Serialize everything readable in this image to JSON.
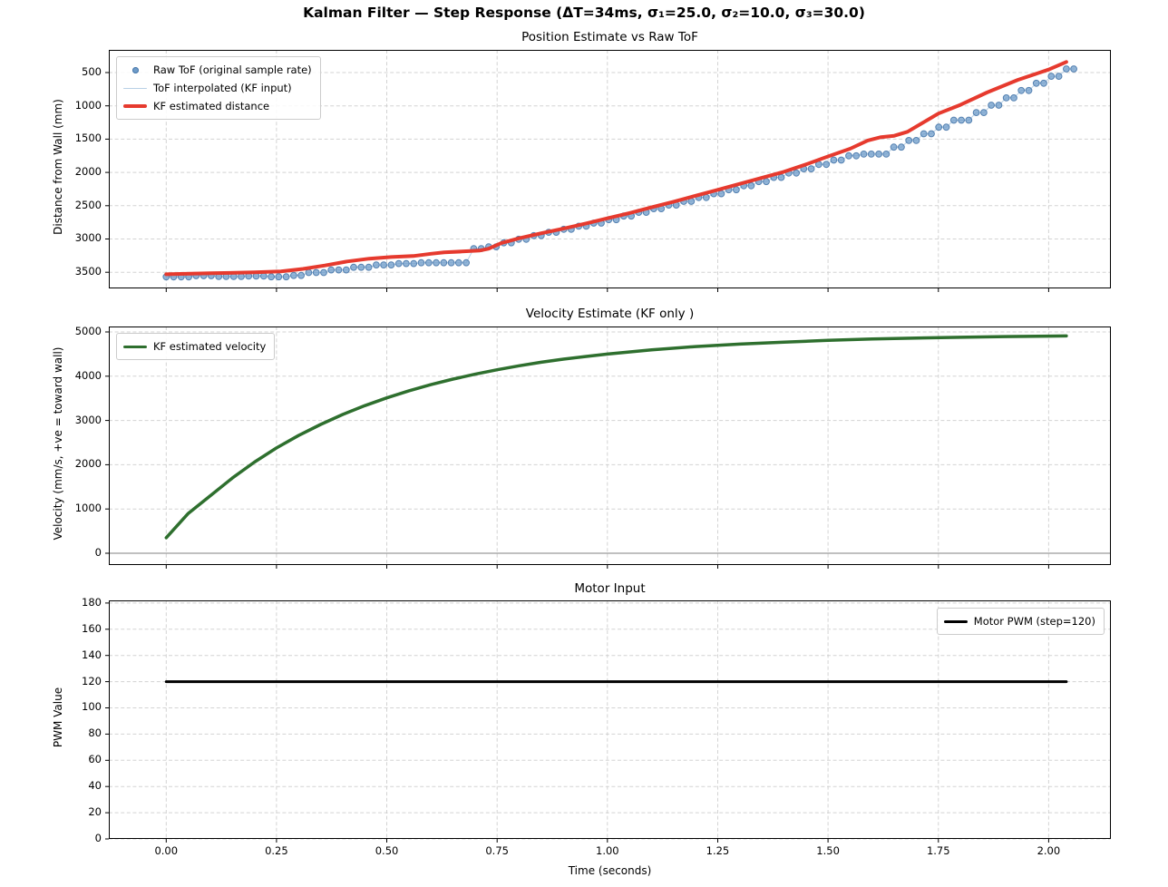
{
  "figure": {
    "suptitle": "Kalman Filter — Step Response  (ΔT=34ms, σ₁=25.0, σ₂=10.0, σ₃=30.0)",
    "xlabel": "Time (seconds)",
    "xtick_values": [
      0,
      0.25,
      0.5,
      0.75,
      1.0,
      1.25,
      1.5,
      1.75,
      2.0
    ],
    "xtick_labels": [
      "0.00",
      "0.25",
      "0.50",
      "0.75",
      "1.00",
      "1.25",
      "1.50",
      "1.75",
      "2.00"
    ],
    "xlim": [
      -0.13,
      2.141
    ],
    "background": "#ffffff",
    "grid_color": "#cccccc",
    "spine_color": "#000000",
    "text_color": "#000000"
  },
  "chart_data": [
    {
      "type": "scatter+line",
      "title": "Position Estimate vs Raw ToF",
      "ylabel": "Distance from Wall (mm)",
      "ytick_values": [
        500,
        1000,
        1500,
        2000,
        2500,
        3000,
        3500
      ],
      "ytick_labels": [
        "500",
        "1000",
        "1500",
        "2000",
        "2500",
        "3000",
        "3500"
      ],
      "ylim_top_bottom": [
        159,
        3743
      ],
      "y_inverted": true,
      "grid": true,
      "legend": {
        "loc": "upper-left",
        "entries": [
          {
            "label": "Raw ToF (original sample rate)",
            "swatch": "dot",
            "color": "#6f9cc9"
          },
          {
            "label": "ToF interpolated (KF input)",
            "swatch": "line",
            "color": "#b8d0e6",
            "lw": 1.5
          },
          {
            "label": "KF estimated distance",
            "swatch": "line",
            "color": "#e63a2e",
            "lw": 4
          }
        ]
      },
      "raw_dt": 0.017,
      "raw_steps": [
        [
          0.0,
          4,
          3570
        ],
        [
          0.068,
          3,
          3552
        ],
        [
          0.119,
          4,
          3565
        ],
        [
          0.187,
          3,
          3558
        ],
        [
          0.238,
          3,
          3568
        ],
        [
          0.289,
          2,
          3548
        ],
        [
          0.323,
          3,
          3505
        ],
        [
          0.374,
          3,
          3465
        ],
        [
          0.425,
          3,
          3425
        ],
        [
          0.476,
          3,
          3390
        ],
        [
          0.527,
          3,
          3370
        ],
        [
          0.578,
          7,
          3358
        ],
        [
          0.697,
          2,
          3145
        ],
        [
          0.731,
          2,
          3118
        ],
        [
          0.765,
          2,
          3058
        ],
        [
          0.799,
          2,
          3005
        ],
        [
          0.833,
          2,
          2950
        ],
        [
          0.867,
          2,
          2900
        ],
        [
          0.901,
          2,
          2855
        ],
        [
          0.935,
          2,
          2808
        ],
        [
          0.969,
          2,
          2762
        ],
        [
          1.003,
          2,
          2710
        ],
        [
          1.037,
          2,
          2655
        ],
        [
          1.071,
          2,
          2600
        ],
        [
          1.105,
          2,
          2545
        ],
        [
          1.139,
          2,
          2490
        ],
        [
          1.173,
          2,
          2435
        ],
        [
          1.207,
          2,
          2378
        ],
        [
          1.241,
          2,
          2320
        ],
        [
          1.275,
          2,
          2260
        ],
        [
          1.309,
          2,
          2200
        ],
        [
          1.343,
          2,
          2138
        ],
        [
          1.377,
          2,
          2075
        ],
        [
          1.411,
          2,
          2010
        ],
        [
          1.445,
          2,
          1945
        ],
        [
          1.479,
          2,
          1880
        ],
        [
          1.513,
          2,
          1815
        ],
        [
          1.547,
          2,
          1750
        ],
        [
          1.581,
          4,
          1725
        ],
        [
          1.649,
          2,
          1620
        ],
        [
          1.683,
          2,
          1520
        ],
        [
          1.717,
          2,
          1420
        ],
        [
          1.751,
          2,
          1320
        ],
        [
          1.785,
          3,
          1215
        ],
        [
          1.836,
          2,
          1100
        ],
        [
          1.87,
          2,
          990
        ],
        [
          1.904,
          2,
          880
        ],
        [
          1.938,
          2,
          770
        ],
        [
          1.972,
          2,
          660
        ],
        [
          2.006,
          2,
          555
        ],
        [
          2.04,
          2,
          445
        ]
      ],
      "series": [
        {
          "name": "ToF interpolated (KF input)",
          "type": "line-from-steps",
          "color": "#b8d0e6",
          "width": 1
        },
        {
          "name": "Raw ToF (original sample rate)",
          "type": "scatter-steps",
          "fill": "#6f9cc9",
          "edge": "#4878ab",
          "radius": 3.4,
          "opacity": 0.75
        },
        {
          "name": "KF estimated distance",
          "type": "line",
          "color": "#e63a2e",
          "width": 4,
          "points": [
            [
              0.0,
              3530
            ],
            [
              0.1,
              3516
            ],
            [
              0.2,
              3502
            ],
            [
              0.26,
              3487
            ],
            [
              0.31,
              3450
            ],
            [
              0.36,
              3398
            ],
            [
              0.41,
              3338
            ],
            [
              0.46,
              3296
            ],
            [
              0.51,
              3272
            ],
            [
              0.56,
              3256
            ],
            [
              0.6,
              3222
            ],
            [
              0.63,
              3200
            ],
            [
              0.67,
              3188
            ],
            [
              0.71,
              3175
            ],
            [
              0.73,
              3148
            ],
            [
              0.76,
              3060
            ],
            [
              0.8,
              2990
            ],
            [
              0.85,
              2915
            ],
            [
              0.9,
              2845
            ],
            [
              0.95,
              2770
            ],
            [
              1.0,
              2690
            ],
            [
              1.05,
              2610
            ],
            [
              1.1,
              2525
            ],
            [
              1.15,
              2440
            ],
            [
              1.2,
              2350
            ],
            [
              1.25,
              2262
            ],
            [
              1.3,
              2172
            ],
            [
              1.35,
              2082
            ],
            [
              1.4,
              1990
            ],
            [
              1.45,
              1880
            ],
            [
              1.5,
              1760
            ],
            [
              1.55,
              1645
            ],
            [
              1.59,
              1520
            ],
            [
              1.62,
              1470
            ],
            [
              1.65,
              1450
            ],
            [
              1.68,
              1390
            ],
            [
              1.75,
              1115
            ],
            [
              1.8,
              985
            ],
            [
              1.86,
              800
            ],
            [
              1.93,
              610
            ],
            [
              2.0,
              455
            ],
            [
              2.04,
              340
            ]
          ]
        }
      ]
    },
    {
      "type": "line",
      "title": "Velocity Estimate (KF only )",
      "ylabel": "Velocity (mm/s,  +ve = toward wall)",
      "ytick_values": [
        0,
        1000,
        2000,
        3000,
        4000,
        5000
      ],
      "ytick_labels": [
        "0",
        "1000",
        "2000",
        "3000",
        "4000",
        "5000"
      ],
      "ylim_top_bottom": [
        5123,
        -266
      ],
      "y_inverted": false,
      "grid": true,
      "hline": {
        "y": 0,
        "color": "#808080",
        "width": 1
      },
      "legend": {
        "loc": "upper-left",
        "entries": [
          {
            "label": "KF estimated velocity",
            "swatch": "line",
            "color": "#2e6f2e",
            "lw": 3.5
          }
        ]
      },
      "series": [
        {
          "name": "KF estimated velocity",
          "type": "line",
          "color": "#2e6f2e",
          "width": 3.5,
          "points": [
            [
              0.0,
              350
            ],
            [
              0.05,
              900
            ],
            [
              0.1,
              1300
            ],
            [
              0.15,
              1700
            ],
            [
              0.2,
              2060
            ],
            [
              0.25,
              2380
            ],
            [
              0.3,
              2660
            ],
            [
              0.35,
              2910
            ],
            [
              0.4,
              3135
            ],
            [
              0.45,
              3335
            ],
            [
              0.5,
              3510
            ],
            [
              0.55,
              3670
            ],
            [
              0.6,
              3810
            ],
            [
              0.65,
              3935
            ],
            [
              0.7,
              4045
            ],
            [
              0.75,
              4145
            ],
            [
              0.8,
              4235
            ],
            [
              0.85,
              4315
            ],
            [
              0.9,
              4385
            ],
            [
              0.95,
              4445
            ],
            [
              1.0,
              4500
            ],
            [
              1.1,
              4595
            ],
            [
              1.2,
              4670
            ],
            [
              1.3,
              4725
            ],
            [
              1.4,
              4770
            ],
            [
              1.5,
              4810
            ],
            [
              1.6,
              4840
            ],
            [
              1.7,
              4862
            ],
            [
              1.8,
              4880
            ],
            [
              1.9,
              4895
            ],
            [
              2.0,
              4905
            ],
            [
              2.04,
              4910
            ]
          ]
        }
      ]
    },
    {
      "type": "line",
      "title": "Motor Input",
      "ylabel": "PWM Value",
      "ytick_values": [
        0,
        20,
        40,
        60,
        80,
        100,
        120,
        140,
        160,
        180
      ],
      "ytick_labels": [
        "0",
        "20",
        "40",
        "60",
        "80",
        "100",
        "120",
        "140",
        "160",
        "180"
      ],
      "ylim_top_bottom": [
        182,
        0
      ],
      "y_inverted": false,
      "grid": true,
      "legend": {
        "loc": "upper-right",
        "entries": [
          {
            "label": "Motor PWM (step=120)",
            "swatch": "line",
            "color": "#000000",
            "lw": 3
          }
        ]
      },
      "series": [
        {
          "name": "Motor PWM (step=120)",
          "type": "line",
          "color": "#000000",
          "width": 3,
          "points": [
            [
              0.0,
              120
            ],
            [
              2.04,
              120
            ]
          ]
        }
      ]
    }
  ]
}
